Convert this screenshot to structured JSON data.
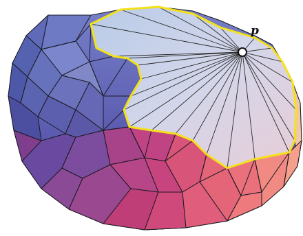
{
  "figure": {
    "vertex_label": "p"
  }
}
